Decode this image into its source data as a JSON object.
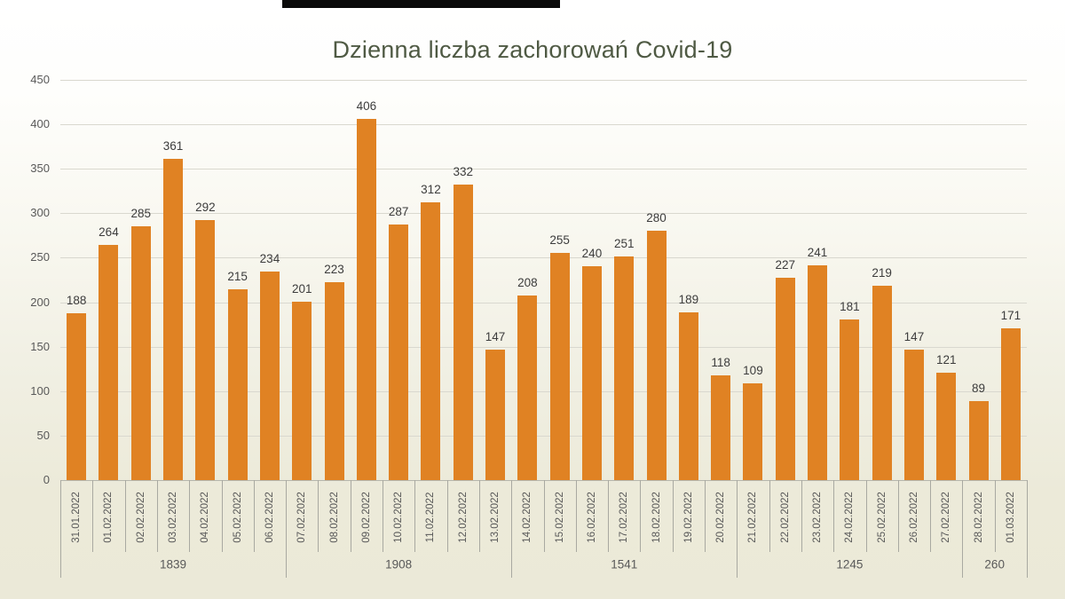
{
  "chart_data": {
    "type": "bar",
    "title": "Dzienna liczba zachorowań Covid-19",
    "categories": [
      "31.01.2022",
      "01.02.2022",
      "02.02.2022",
      "03.02.2022",
      "04.02.2022",
      "05.02.2022",
      "06.02.2022",
      "07.02.2022",
      "08.02.2022",
      "09.02.2022",
      "10.02.2022",
      "11.02.2022",
      "12.02.2022",
      "13.02.2022",
      "14.02.2022",
      "15.02.2022",
      "16.02.2022",
      "17.02.2022",
      "18.02.2022",
      "19.02.2022",
      "20.02.2022",
      "21.02.2022",
      "22.02.2022",
      "23.02.2022",
      "24.02.2022",
      "25.02.2022",
      "26.02.2022",
      "27.02.2022",
      "28.02.2022",
      "01.03.2022"
    ],
    "values": [
      188,
      264,
      285,
      361,
      292,
      215,
      234,
      201,
      223,
      406,
      287,
      312,
      332,
      147,
      208,
      255,
      240,
      251,
      280,
      189,
      118,
      109,
      227,
      241,
      181,
      219,
      147,
      121,
      89,
      171
    ],
    "week_groups": [
      {
        "label": "1839",
        "span": 7
      },
      {
        "label": "1908",
        "span": 7
      },
      {
        "label": "1541",
        "span": 7
      },
      {
        "label": "1245",
        "span": 7
      },
      {
        "label": "260",
        "span": 2
      }
    ],
    "ylim": [
      0,
      450
    ],
    "yticks": [
      0,
      50,
      100,
      150,
      200,
      250,
      300,
      350,
      400,
      450
    ],
    "grid": true,
    "legend": "none",
    "xlabel": "",
    "ylabel": "",
    "colors": {
      "bar": "#e08223",
      "title": "#4f5a44",
      "value_label": "#3c3c3c",
      "axis_text": "#595959",
      "gridline": "#d9d8cf",
      "axis_line": "#b5b5ac",
      "separator": "#a9a9a1",
      "background_top": "#ffffff",
      "background_bottom": "#ebe9d8",
      "top_strip": "#0a0a0a"
    }
  }
}
